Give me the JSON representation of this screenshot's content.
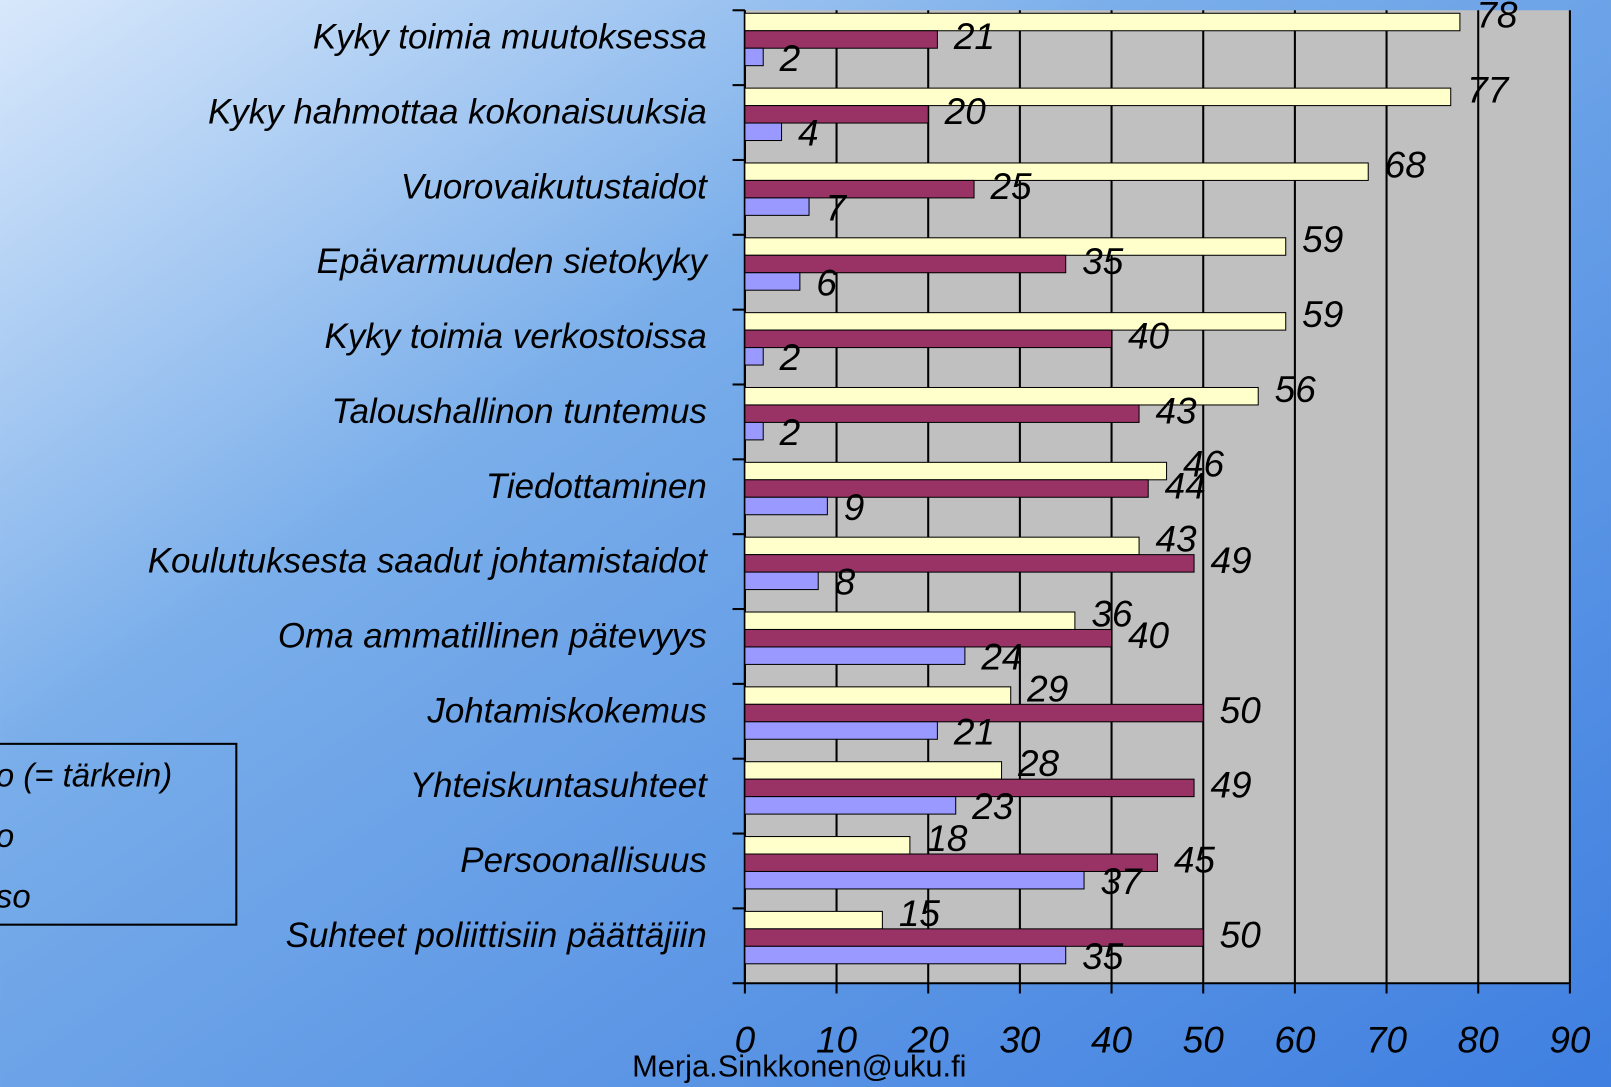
{
  "chart_data": {
    "type": "bar",
    "orientation": "horizontal",
    "categories": [
      "Kyky toimia muutoksessa",
      "Kyky hahmottaa kokonaisuuksia",
      "Vuorovaikutustaidot",
      "Epävarmuuden sietokyky",
      "Kyky toimia verkostoissa",
      "Taloushallinon tuntemus",
      "Tiedottaminen",
      "Koulutuksesta saadut johtamistaidot",
      "Oma ammatillinen pätevyys",
      "Johtamiskokemus",
      "Yhteiskuntasuhteet",
      "Persoonallisuus",
      "Suhteet poliittisiin päättäjiin"
    ],
    "series": [
      {
        "name": "o (= tärkein)",
        "color": "#ffffcc",
        "values": [
          78,
          77,
          68,
          59,
          59,
          56,
          46,
          43,
          36,
          29,
          28,
          18,
          15
        ]
      },
      {
        "name": "o",
        "color": "#993366",
        "values": [
          21,
          20,
          25,
          35,
          40,
          43,
          44,
          49,
          40,
          50,
          49,
          45,
          50
        ]
      },
      {
        "name": "so",
        "color": "#9999ff",
        "values": [
          2,
          4,
          7,
          6,
          2,
          2,
          9,
          8,
          24,
          21,
          23,
          37,
          35
        ]
      }
    ],
    "xlim": [
      0,
      90
    ],
    "xticks": [
      0,
      10,
      20,
      30,
      40,
      50,
      60,
      70,
      80,
      90
    ],
    "grid": true,
    "legend": "left",
    "footer": "Merja.Sinkkonen@uku.fi"
  }
}
